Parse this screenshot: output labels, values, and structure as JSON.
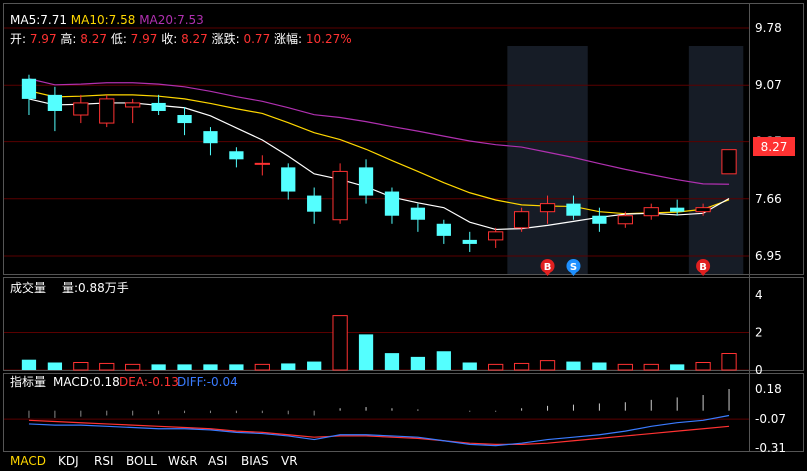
{
  "main_panel": {
    "ma_labels": [
      {
        "label": "MA5:7.71",
        "color": "#ffffff"
      },
      {
        "label": "MA10:7.58",
        "color": "#ffd700"
      },
      {
        "label": "MA20:7.53",
        "color": "#b030b0"
      }
    ],
    "ohlc_items": [
      {
        "label": "开:",
        "value": "7.97"
      },
      {
        "label": "高:",
        "value": "8.27"
      },
      {
        "label": "低:",
        "value": "7.97"
      },
      {
        "label": "收:",
        "value": "8.27"
      },
      {
        "label": "涨跌:",
        "value": "0.77"
      },
      {
        "label": "涨幅:",
        "value": "10.27%"
      }
    ],
    "y_ticks": [
      "9.78",
      "9.07",
      "8.37",
      "7.66",
      "6.95"
    ],
    "last_price": "8.27",
    "markers": [
      {
        "label": "B",
        "index": 20,
        "color": "#e02020"
      },
      {
        "label": "S",
        "index": 21,
        "color": "#1e90ff"
      },
      {
        "label": "B",
        "index": 26,
        "color": "#e02020"
      }
    ]
  },
  "volume_panel": {
    "title": "成交量",
    "volume_label": "量:0.88万手",
    "y_ticks": [
      "4",
      "2",
      "0"
    ]
  },
  "indicator_panel": {
    "title": "指标量",
    "macd_label": "MACD:0.18",
    "dea_label": "DEA:-0.13",
    "diff_label": "DIFF:-0.04",
    "y_ticks": [
      "0.18",
      "-0.07",
      "-0.31"
    ]
  },
  "tabs": [
    {
      "label": "MACD",
      "active": true
    },
    {
      "label": "KDJ",
      "active": false
    },
    {
      "label": "RSI",
      "active": false
    },
    {
      "label": "BOLL",
      "active": false
    },
    {
      "label": "W&R",
      "active": false
    },
    {
      "label": "ASI",
      "active": false
    },
    {
      "label": "BIAS",
      "active": false
    },
    {
      "label": "VR",
      "active": false
    }
  ],
  "colors": {
    "up": "#ff3232",
    "down": "#54ffff",
    "ma5": "#ffffff",
    "ma10": "#ffd700",
    "ma20": "#b030b0",
    "dea": "#ff3232",
    "diff": "#3a7bff"
  },
  "chart_data": {
    "type": "candlestick",
    "price_axis": [
      6.95,
      9.78
    ],
    "candles": [
      {
        "o": 9.15,
        "h": 9.2,
        "l": 8.7,
        "c": 8.9
      },
      {
        "o": 8.95,
        "h": 9.05,
        "l": 8.5,
        "c": 8.75
      },
      {
        "o": 8.7,
        "h": 8.95,
        "l": 8.6,
        "c": 8.85
      },
      {
        "o": 8.6,
        "h": 8.95,
        "l": 8.55,
        "c": 8.9
      },
      {
        "o": 8.8,
        "h": 8.9,
        "l": 8.6,
        "c": 8.85
      },
      {
        "o": 8.85,
        "h": 8.95,
        "l": 8.7,
        "c": 8.75
      },
      {
        "o": 8.7,
        "h": 8.8,
        "l": 8.45,
        "c": 8.6
      },
      {
        "o": 8.5,
        "h": 8.55,
        "l": 8.2,
        "c": 8.35
      },
      {
        "o": 8.25,
        "h": 8.3,
        "l": 8.05,
        "c": 8.15
      },
      {
        "o": 8.1,
        "h": 8.2,
        "l": 7.95,
        "c": 8.1
      },
      {
        "o": 8.05,
        "h": 8.1,
        "l": 7.65,
        "c": 7.75
      },
      {
        "o": 7.7,
        "h": 7.8,
        "l": 7.35,
        "c": 7.5
      },
      {
        "o": 7.4,
        "h": 8.1,
        "l": 7.35,
        "c": 8.0
      },
      {
        "o": 8.05,
        "h": 8.15,
        "l": 7.6,
        "c": 7.7
      },
      {
        "o": 7.75,
        "h": 7.8,
        "l": 7.35,
        "c": 7.45
      },
      {
        "o": 7.55,
        "h": 7.6,
        "l": 7.25,
        "c": 7.4
      },
      {
        "o": 7.35,
        "h": 7.4,
        "l": 7.1,
        "c": 7.2
      },
      {
        "o": 7.15,
        "h": 7.25,
        "l": 7.0,
        "c": 7.1
      },
      {
        "o": 7.15,
        "h": 7.3,
        "l": 7.05,
        "c": 7.25
      },
      {
        "o": 7.3,
        "h": 7.55,
        "l": 7.25,
        "c": 7.5
      },
      {
        "o": 7.5,
        "h": 7.7,
        "l": 7.35,
        "c": 7.6
      },
      {
        "o": 7.6,
        "h": 7.7,
        "l": 7.4,
        "c": 7.45
      },
      {
        "o": 7.45,
        "h": 7.55,
        "l": 7.25,
        "c": 7.35
      },
      {
        "o": 7.35,
        "h": 7.5,
        "l": 7.3,
        "c": 7.45
      },
      {
        "o": 7.45,
        "h": 7.6,
        "l": 7.4,
        "c": 7.55
      },
      {
        "o": 7.55,
        "h": 7.65,
        "l": 7.45,
        "c": 7.5
      },
      {
        "o": 7.5,
        "h": 7.6,
        "l": 7.45,
        "c": 7.55
      },
      {
        "o": 7.97,
        "h": 8.27,
        "l": 7.97,
        "c": 8.27
      }
    ],
    "volume_axis": [
      0,
      4
    ],
    "volumes": [
      0.55,
      0.4,
      0.4,
      0.35,
      0.3,
      0.3,
      0.3,
      0.3,
      0.3,
      0.3,
      0.35,
      0.45,
      2.9,
      1.9,
      0.9,
      0.7,
      1.0,
      0.4,
      0.3,
      0.35,
      0.5,
      0.45,
      0.4,
      0.3,
      0.3,
      0.3,
      0.4,
      0.88
    ],
    "macd_axis": [
      -0.31,
      0.18
    ],
    "macd": [
      -0.06,
      -0.06,
      -0.05,
      -0.04,
      -0.04,
      -0.03,
      -0.02,
      -0.02,
      -0.02,
      -0.02,
      -0.03,
      -0.04,
      0.02,
      0.03,
      0.02,
      0.01,
      0.0,
      -0.01,
      -0.01,
      0.02,
      0.04,
      0.05,
      0.06,
      0.07,
      0.09,
      0.11,
      0.13,
      0.18
    ],
    "dea": [
      -0.08,
      -0.09,
      -0.1,
      -0.11,
      -0.12,
      -0.13,
      -0.14,
      -0.15,
      -0.17,
      -0.18,
      -0.2,
      -0.22,
      -0.21,
      -0.21,
      -0.22,
      -0.23,
      -0.25,
      -0.27,
      -0.28,
      -0.28,
      -0.27,
      -0.25,
      -0.23,
      -0.21,
      -0.19,
      -0.17,
      -0.15,
      -0.13
    ],
    "diff": [
      -0.11,
      -0.12,
      -0.12,
      -0.13,
      -0.14,
      -0.15,
      -0.15,
      -0.16,
      -0.18,
      -0.19,
      -0.21,
      -0.24,
      -0.2,
      -0.2,
      -0.21,
      -0.22,
      -0.25,
      -0.28,
      -0.29,
      -0.27,
      -0.24,
      -0.22,
      -0.2,
      -0.17,
      -0.13,
      -0.1,
      -0.08,
      -0.04
    ]
  }
}
